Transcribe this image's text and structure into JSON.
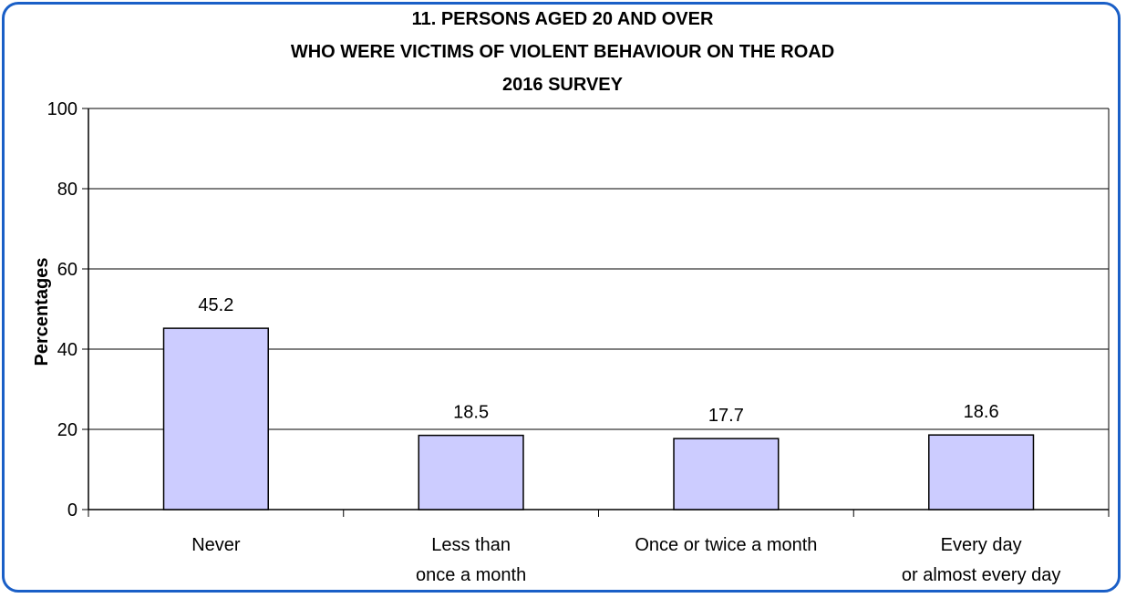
{
  "chart_data": {
    "type": "bar",
    "title": [
      "11. PERSONS AGED 20 AND OVER",
      "WHO WERE VICTIMS OF VIOLENT BEHAVIOUR ON THE ROAD",
      "2016 SURVEY"
    ],
    "ylabel": "Percentages",
    "xlabel": "",
    "ylim": [
      0,
      100
    ],
    "yticks": [
      0,
      20,
      40,
      60,
      80,
      100
    ],
    "categories": [
      [
        "Never"
      ],
      [
        "Less than",
        "once a month"
      ],
      [
        "Once or twice a month"
      ],
      [
        "Every day",
        "or almost every day"
      ]
    ],
    "values": [
      45.2,
      18.5,
      17.7,
      18.6
    ],
    "value_labels": [
      "45.2",
      "18.5",
      "17.7",
      "18.6"
    ],
    "grid": true,
    "colors": {
      "bar_fill": "#ccccff",
      "bar_stroke": "#000000",
      "frame": "#1a5fc7",
      "gridline": "#000000"
    }
  }
}
